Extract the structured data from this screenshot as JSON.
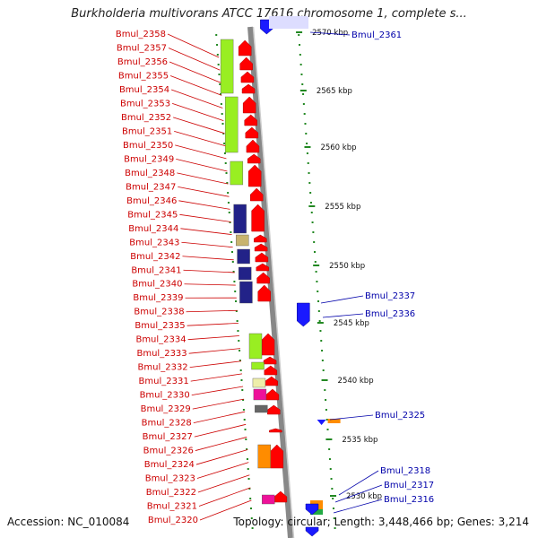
{
  "title": "Burkholderia multivorans ATCC 17616 chromosome 1, complete s...",
  "accession": "Accession: NC_010084",
  "topology": "Topology: circular; Length: 3,448,466 bp; Genes: 3,214",
  "kbp_labels": [
    "2570 kbp",
    "2565 kbp",
    "2560 kbp",
    "2555 kbp",
    "2550 kbp",
    "2545 kbp",
    "2540 kbp",
    "2535 kbp",
    "2530 kbp"
  ],
  "left_genes": [
    "Bmul_2358",
    "Bmul_2357",
    "Bmul_2356",
    "Bmul_2355",
    "Bmul_2354",
    "Bmul_2353",
    "Bmul_2352",
    "Bmul_2351",
    "Bmul_2350",
    "Bmul_2349",
    "Bmul_2348",
    "Bmul_2347",
    "Bmul_2346",
    "Bmul_2345",
    "Bmul_2344",
    "Bmul_2343",
    "Bmul_2342",
    "Bmul_2341",
    "Bmul_2340",
    "Bmul_2339",
    "Bmul_2338",
    "Bmul_2335",
    "Bmul_2334",
    "Bmul_2333",
    "Bmul_2332",
    "Bmul_2331",
    "Bmul_2330",
    "Bmul_2329",
    "Bmul_2328",
    "Bmul_2327",
    "Bmul_2326",
    "Bmul_2324",
    "Bmul_2323",
    "Bmul_2322",
    "Bmul_2321",
    "Bmul_2320"
  ],
  "right_genes": [
    "Bmul_2361",
    "Bmul_2337",
    "Bmul_2336",
    "Bmul_2325",
    "Bmul_2318",
    "Bmul_2317",
    "Bmul_2316"
  ],
  "colors": {
    "forward": "#ff0000",
    "reverse": "#1a1aff",
    "lime": "#99ee22",
    "navy": "#222288",
    "khaki": "#c8b46e",
    "orange": "#ff8c00",
    "magenta": "#ee1199",
    "backbone": "#888888"
  }
}
